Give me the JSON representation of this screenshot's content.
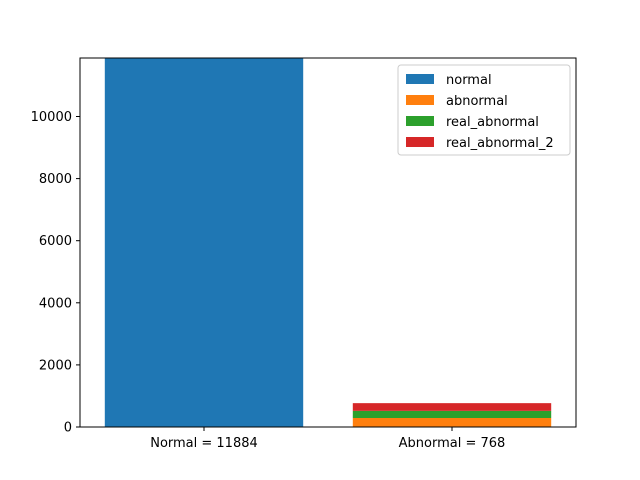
{
  "chart_data": {
    "type": "bar",
    "stacked": true,
    "title": "",
    "xlabel": "",
    "ylabel": "",
    "categories": [
      "Normal = 11884",
      "Abnormal = 768"
    ],
    "series": [
      {
        "name": "normal",
        "color": "#1f77b4",
        "values": [
          11884,
          0
        ]
      },
      {
        "name": "abnormal",
        "color": "#ff7f0e",
        "values": [
          0,
          290
        ]
      },
      {
        "name": "real_abnormal",
        "color": "#2ca02c",
        "values": [
          0,
          230
        ]
      },
      {
        "name": "real_abnormal_2",
        "color": "#d62728",
        "values": [
          0,
          248
        ]
      }
    ],
    "ylim": [
      0,
      11884
    ],
    "yticks": [
      0,
      2000,
      4000,
      6000,
      8000,
      10000
    ],
    "grid": false,
    "legend_position": "top-right"
  }
}
